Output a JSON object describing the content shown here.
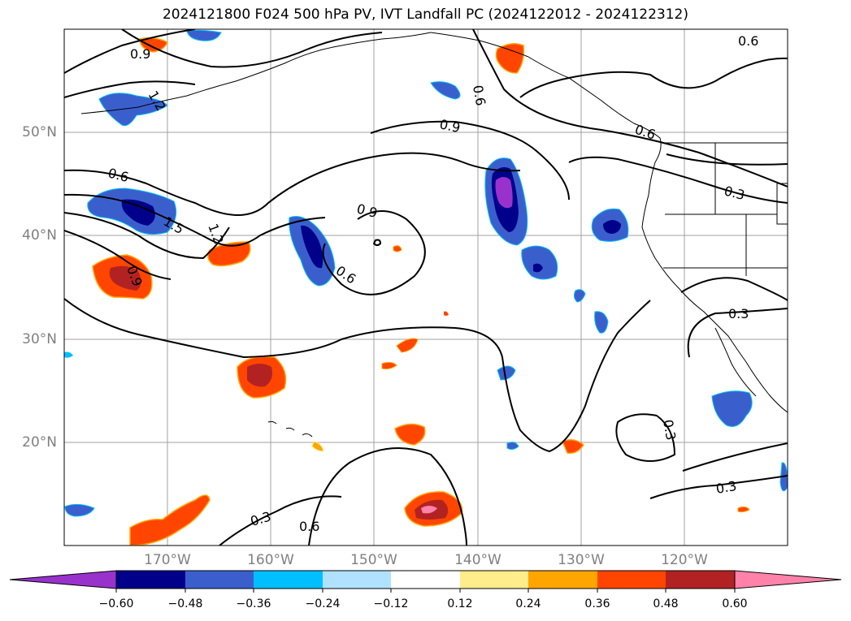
{
  "title": "2024121800 F024 500 hPa PV, IVT Landfall PC (2024122012 - 2024122312)",
  "lat_labels": [
    "50°N",
    "40°N",
    "30°N",
    "20°N"
  ],
  "lon_labels": [
    "170°W",
    "160°W",
    "150°W",
    "140°W",
    "130°W",
    "120°W"
  ],
  "contour_labels": [
    "0.9",
    "1.2",
    "0.6",
    "0.9",
    "0.6",
    "1.5",
    "1.2",
    "0.9",
    "0.9",
    "0.6",
    "0.6",
    "0.6",
    "0.3",
    "0.3",
    "0.3",
    "0.3",
    "0.3",
    "0.6"
  ],
  "colorbar": {
    "ticks": [
      "−0.60",
      "−0.48",
      "−0.36",
      "−0.24",
      "−0.12",
      "0.12",
      "0.24",
      "0.36",
      "0.48",
      "0.60"
    ],
    "colors": [
      "#9932CC",
      "#00008B",
      "#3A5FCD",
      "#00BFFF",
      "#B0E2FF",
      "#FFFFFF",
      "#FFEC8B",
      "#FFA500",
      "#FF4500",
      "#B22222",
      "#FF82AB",
      "#FF82AB"
    ]
  },
  "colors": {
    "contour": "#000000",
    "coastline": "#000000",
    "grid": "#a0a0a0",
    "axis_label": "#808080"
  }
}
